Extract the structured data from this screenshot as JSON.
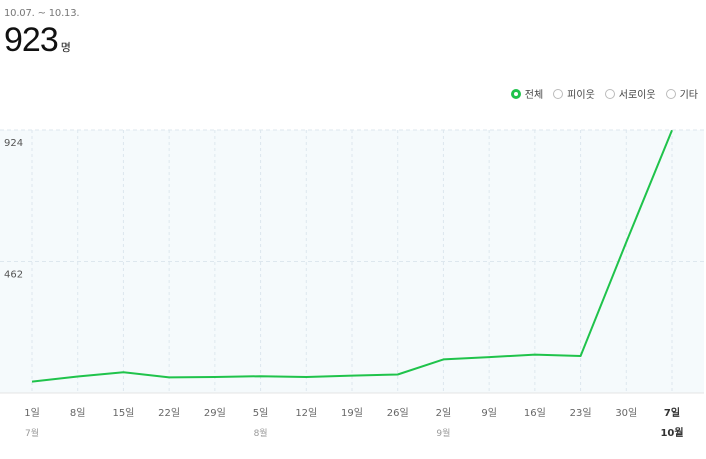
{
  "header": {
    "period": "10.07. ~ 10.13.",
    "total_value": "923",
    "total_unit": "명"
  },
  "filters": [
    {
      "label": "전체",
      "checked": true
    },
    {
      "label": "피이웃",
      "checked": false
    },
    {
      "label": "서로이웃",
      "checked": false
    },
    {
      "label": "기타",
      "checked": false
    }
  ],
  "colors": {
    "line": "#1fc34b",
    "plot_bg": "#f5fafc",
    "grid": "#dde7ee",
    "radio_checked": "#1fc34b"
  },
  "chart_data": {
    "type": "line",
    "title": "",
    "xlabel": "",
    "ylabel": "",
    "categories": [
      "1일",
      "8일",
      "15일",
      "22일",
      "29일",
      "5일",
      "12일",
      "19일",
      "26일",
      "2일",
      "9일",
      "16일",
      "23일",
      "30일",
      "7일"
    ],
    "month_labels": [
      {
        "index": 0,
        "label": "7월",
        "bold": false
      },
      {
        "index": 5,
        "label": "8월",
        "bold": false
      },
      {
        "index": 9,
        "label": "9월",
        "bold": false
      },
      {
        "index": 14,
        "label": "10월",
        "bold": true
      }
    ],
    "bold_category_index": 14,
    "series": [
      {
        "values": [
          40,
          58,
          73,
          55,
          56,
          59,
          56,
          61,
          65,
          118,
          126,
          135,
          130,
          530,
          923
        ]
      }
    ],
    "yticks": [
      462,
      924
    ],
    "ylim": [
      0,
      924
    ],
    "grid": true,
    "legend": "top-right"
  }
}
